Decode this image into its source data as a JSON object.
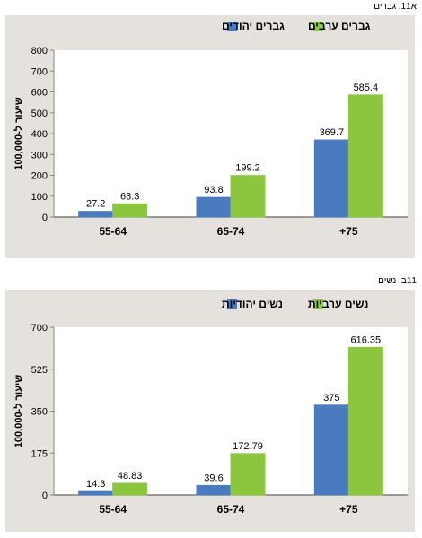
{
  "chart_data": [
    {
      "type": "bar",
      "title": "א11. גברים",
      "ylabel": "שיעור ל-100,000",
      "categories": [
        "+75",
        "65-74",
        "55-64"
      ],
      "series": [
        {
          "name": "גברים ערבים",
          "color": "#8cc63f",
          "values": [
            585.4,
            199.2,
            63.3
          ]
        },
        {
          "name": "גברים יהודים",
          "color": "#4a7abf",
          "values": [
            369.7,
            93.8,
            27.2
          ]
        }
      ],
      "value_labels": [
        [
          "585.4",
          "199.2",
          "63.3"
        ],
        [
          "369.7",
          "93.8",
          "27.2"
        ]
      ],
      "ylim": [
        0,
        800
      ],
      "yticks": [
        0,
        100,
        200,
        300,
        400,
        500,
        600,
        700,
        800
      ],
      "ytick_labels": [
        "0",
        "100",
        "200",
        "300",
        "400",
        "500",
        "600",
        "700",
        "800"
      ],
      "legend_position": "top",
      "grid": false
    },
    {
      "type": "bar",
      "title": "11ב. נשים",
      "ylabel": "שיעור ל-100,000",
      "categories": [
        "+75",
        "65-74",
        "55-64"
      ],
      "series": [
        {
          "name": "נשים ערביות",
          "color": "#8cc63f",
          "values": [
            616.35,
            172.79,
            48.83
          ]
        },
        {
          "name": "נשים יהודיות",
          "color": "#4a7abf",
          "values": [
            375,
            39.6,
            14.3
          ]
        }
      ],
      "value_labels": [
        [
          "616.35",
          "172.79",
          "48.83"
        ],
        [
          "375",
          "39.6",
          "14.3"
        ]
      ],
      "ylim": [
        0,
        700
      ],
      "yticks": [
        0,
        175,
        350,
        525,
        700
      ],
      "ytick_labels": [
        "0",
        "175",
        "350",
        "525",
        "700"
      ],
      "legend_position": "top",
      "grid": false
    }
  ]
}
